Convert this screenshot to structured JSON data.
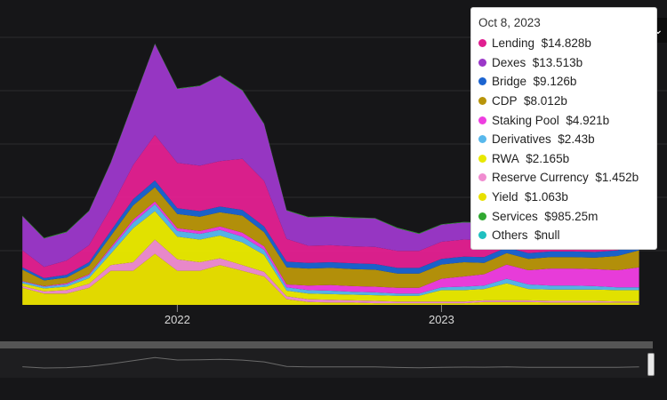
{
  "chart_data": {
    "type": "area",
    "stacked": true,
    "x_axis": {
      "ticks": [
        "2022",
        "2023"
      ],
      "range": [
        "2021-05",
        "2023-10-15"
      ]
    },
    "y_axis": {
      "visible": false
    },
    "x": [
      "2021-06",
      "2021-07",
      "2021-08",
      "2021-09",
      "2021-10",
      "2021-11",
      "2021-12",
      "2022-01",
      "2022-02",
      "2022-03",
      "2022-04",
      "2022-05",
      "2022-06",
      "2022-07",
      "2022-08",
      "2022-09",
      "2022-10",
      "2022-11",
      "2022-12",
      "2023-01",
      "2023-02",
      "2023-03",
      "2023-04",
      "2023-05",
      "2023-06",
      "2023-07",
      "2023-08",
      "2023-09",
      "2023-10"
    ],
    "series": [
      {
        "name": "Yield",
        "color": "#e8e000",
        "values": [
          3,
          2,
          2,
          3,
          6,
          6,
          9,
          6,
          6,
          7,
          6,
          5,
          1,
          0.5,
          0.4,
          0.4,
          0.3,
          0.3,
          0.3,
          0.3,
          0.3,
          0.5,
          0.5,
          0.5,
          0.4,
          0.4,
          0.4,
          0.4,
          0.4
        ]
      },
      {
        "name": "Reserve Currency",
        "color": "#f08cd0",
        "values": [
          0.3,
          0.4,
          0.6,
          0.7,
          1,
          1.5,
          2.5,
          2,
          1.5,
          1.2,
          1,
          0.8,
          0.5,
          0.5,
          0.5,
          0.4,
          0.4,
          0.3,
          0.3,
          0.3,
          0.3,
          0.3,
          0.3,
          0.3,
          0.3,
          0.3,
          0.3,
          0.2,
          0.2
        ]
      },
      {
        "name": "RWA",
        "color": "#e8e800",
        "values": [
          0.5,
          0.5,
          0.6,
          1,
          2,
          6,
          5,
          4,
          4,
          4,
          4,
          3,
          1,
          1,
          1,
          1,
          1,
          1,
          1,
          2,
          2,
          2,
          3,
          2,
          2,
          2,
          2,
          2,
          2
        ]
      },
      {
        "name": "Derivatives",
        "color": "#58b8ec",
        "values": [
          0.3,
          0.3,
          0.4,
          0.5,
          0.8,
          1,
          1.2,
          1,
          1,
          1,
          1,
          0.9,
          0.6,
          0.6,
          0.6,
          0.5,
          0.5,
          0.4,
          0.4,
          0.5,
          0.6,
          0.6,
          0.8,
          0.8,
          0.7,
          0.7,
          0.6,
          0.5,
          0.5
        ]
      },
      {
        "name": "Staking Pool",
        "color": "#ee3ee0",
        "values": [
          0.1,
          0.1,
          0.2,
          0.2,
          0.3,
          0.5,
          0.5,
          0.5,
          0.5,
          0.6,
          0.7,
          0.6,
          0.5,
          0.8,
          1,
          1,
          1,
          1,
          1,
          1.5,
          1.8,
          2,
          2.5,
          2.5,
          3,
          3,
          3,
          3,
          3.5
        ]
      },
      {
        "name": "CDP",
        "color": "#b8940a",
        "values": [
          2,
          1,
          1,
          1.5,
          2,
          2.5,
          2.5,
          2.5,
          2.5,
          2.5,
          3,
          2.5,
          3,
          3,
          3,
          3,
          3,
          2.5,
          2.5,
          2.5,
          2.5,
          2,
          2,
          2,
          2,
          2,
          2,
          2.5,
          3
        ]
      },
      {
        "name": "Bridge",
        "color": "#1c64d0",
        "values": [
          0.4,
          0.4,
          0.5,
          0.6,
          0.9,
          1.1,
          1.2,
          1,
          1,
          1,
          1,
          1,
          1,
          1,
          1,
          1,
          1,
          1,
          1,
          1,
          1,
          1,
          1,
          1,
          1,
          1,
          1,
          1,
          1
        ]
      },
      {
        "name": "Lending",
        "color": "#e02090",
        "values": [
          3,
          2,
          2.5,
          3,
          4,
          6,
          8,
          8,
          8,
          8,
          9,
          8,
          4,
          3,
          3,
          3,
          3,
          3,
          3,
          3,
          3,
          3,
          3,
          2.5,
          2.5,
          2.5,
          2.5,
          2.5,
          2.5
        ]
      },
      {
        "name": "Dexes",
        "color": "#9b38c8",
        "values": [
          6,
          5,
          5,
          6,
          8,
          11,
          16,
          13,
          14,
          15,
          12,
          10,
          5,
          5,
          5,
          5,
          5,
          4,
          3,
          3,
          3,
          3,
          2,
          2,
          2,
          2,
          2,
          2,
          2
        ]
      },
      {
        "name": "Others",
        "color": "#20c0c0",
        "values": [
          0,
          0,
          0,
          0,
          0,
          0,
          0,
          0,
          0,
          0,
          0,
          0,
          0,
          0,
          0,
          0,
          0,
          0,
          0,
          0,
          0,
          0,
          0,
          0,
          0,
          0,
          0,
          0,
          0
        ]
      },
      {
        "name": "Services",
        "color": "#30a830",
        "values": [
          0.1,
          0.1,
          0.1,
          0.1,
          0.1,
          0.1,
          0.1,
          0.1,
          0.1,
          0.1,
          0.1,
          0.1,
          0.1,
          0.1,
          0.1,
          0.1,
          0.1,
          0.1,
          0.1,
          0.1,
          0.1,
          0.1,
          0.1,
          0.1,
          0.1,
          0.1,
          0.1,
          0.1,
          0.1
        ]
      }
    ],
    "tooltip": {
      "date": "Oct 8, 2023",
      "items": [
        {
          "name": "Lending",
          "value": "$14.828b",
          "color": "#e02090"
        },
        {
          "name": "Dexes",
          "value": "$13.513b",
          "color": "#9b38c8"
        },
        {
          "name": "Bridge",
          "value": "$9.126b",
          "color": "#1c64d0"
        },
        {
          "name": "CDP",
          "value": "$8.012b",
          "color": "#b8940a"
        },
        {
          "name": "Staking Pool",
          "value": "$4.921b",
          "color": "#ee3ee0"
        },
        {
          "name": "Derivatives",
          "value": "$2.43b",
          "color": "#58b8ec"
        },
        {
          "name": "RWA",
          "value": "$2.165b",
          "color": "#e8e800"
        },
        {
          "name": "Reserve Currency",
          "value": "$1.452b",
          "color": "#f08cd0"
        },
        {
          "name": "Yield",
          "value": "$1.063b",
          "color": "#e8e000"
        },
        {
          "name": "Services",
          "value": "$985.25m",
          "color": "#30a830"
        },
        {
          "name": "Others",
          "value": "$null",
          "color": "#20c0c0"
        }
      ]
    },
    "grid": true,
    "legend": "tooltip top-right"
  },
  "ui": {
    "menu_icon": "chevron-down-icon",
    "menu_glyph": "⌄",
    "colors": {
      "background": "#161618",
      "grid": "#2c2c2e",
      "navigator_bg": "#1e1e20",
      "navigator_bar": "#555555"
    }
  }
}
